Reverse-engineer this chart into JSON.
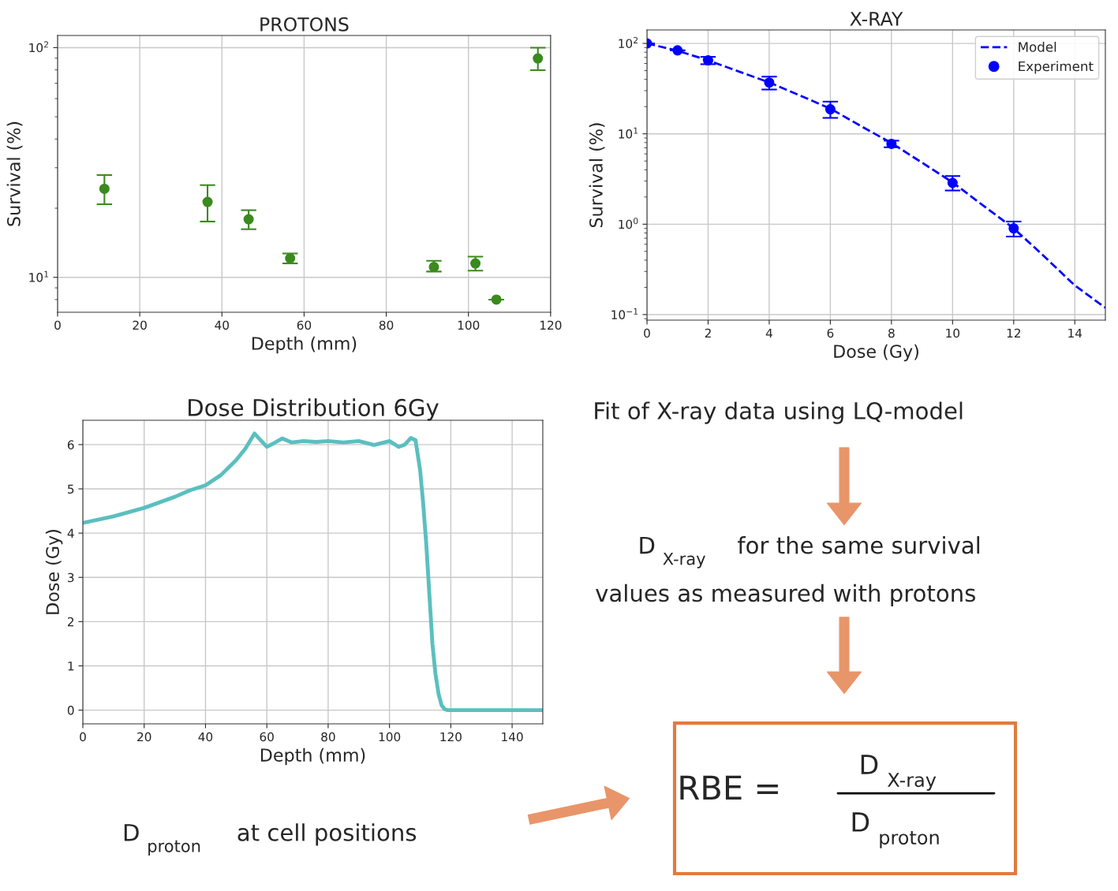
{
  "chart_data": [
    {
      "type": "scatter",
      "title": "PROTONS",
      "xlabel": "Depth (mm)",
      "ylabel": "Survival (%)",
      "log": "y",
      "x": [
        11.4,
        36.5,
        46.5,
        56.6,
        91.6,
        101.7,
        106.8,
        116.9
      ],
      "series": [
        {
          "color": "#3a8a1e",
          "values": [
            24.3,
            21.3,
            17.9,
            12.1,
            11.1,
            11.5,
            8.0,
            89.8
          ],
          "errors": [
            [
              20.8,
              27.9
            ],
            [
              17.5,
              25.2
            ],
            [
              16.2,
              19.6
            ],
            [
              11.5,
              12.7
            ],
            [
              10.6,
              11.8
            ],
            [
              10.7,
              12.3
            ],
            [
              8.0,
              8.0
            ],
            [
              79.8,
              100
            ]
          ]
        }
      ],
      "marker": "circle",
      "xlim": [
        0,
        120
      ],
      "xticks": [
        0,
        20,
        40,
        60,
        80,
        100,
        120
      ],
      "ylim": [
        7.05,
        113
      ],
      "yticks": [
        {
          "value": 10,
          "label": "10$^{1}$"
        },
        {
          "value": 100,
          "label": "10$^{2}$"
        }
      ],
      "grid": true,
      "legend": false
    },
    {
      "type": "scatter",
      "title": "X-RAY",
      "xlabel": "Dose (Gy)",
      "ylabel": "Survival (%)",
      "log": "y",
      "series": [
        {
          "name": "Model",
          "type": "line",
          "line_style": "dashed",
          "marker": "none",
          "color": "#0000ff",
          "x": [
            0,
            1,
            2,
            3,
            4,
            5,
            6,
            7,
            8,
            9,
            10,
            11,
            12,
            13,
            14,
            15
          ],
          "values": [
            100,
            83,
            65,
            49,
            37,
            26.6,
            19,
            12.2,
            7.9,
            4.8,
            2.9,
            1.61,
            0.9,
            0.44,
            0.21,
            0.119
          ]
        },
        {
          "name": "Experiment",
          "color": "#0000ff",
          "x": [
            0,
            1,
            2,
            4,
            6,
            8,
            10,
            12
          ],
          "values": [
            100,
            83.8,
            64.9,
            36.9,
            18.7,
            7.74,
            2.86,
            0.9
          ],
          "errors": [
            null,
            null,
            [
              58.9,
              71
            ],
            [
              30.9,
              42.9
            ],
            [
              15.0,
              22.7
            ],
            [
              7.1,
              8.4
            ],
            [
              2.36,
              3.41
            ],
            [
              0.73,
              1.07
            ]
          ]
        }
      ],
      "marker": "circle",
      "xlim": [
        0,
        15
      ],
      "xticks": [
        0,
        2,
        4,
        6,
        8,
        10,
        12,
        14
      ],
      "ylim": [
        0.0868,
        141
      ],
      "yticks": [
        {
          "value": 0.1,
          "label": "10$^{−1}$"
        },
        {
          "value": 1,
          "label": "10$^{0}$"
        },
        {
          "value": 10,
          "label": "10$^{1}$"
        },
        {
          "value": 100,
          "label": "10$^{2}$"
        }
      ],
      "grid": true,
      "legend": "top right"
    },
    {
      "type": "line",
      "title": "Dose Distribution 6Gy",
      "xlabel": "Depth (mm)",
      "ylabel": "Dose (Gy)",
      "x": [
        0,
        10,
        20,
        30,
        35,
        40,
        45,
        50,
        53,
        56,
        58,
        60,
        62,
        65,
        68,
        72,
        76,
        80,
        85,
        90,
        95,
        100,
        103,
        105,
        107,
        108.5,
        110,
        111,
        112,
        113,
        114,
        115,
        116,
        117,
        118,
        119,
        120,
        150
      ],
      "series": [
        {
          "color": "#5bbfbf",
          "values": [
            4.23,
            4.38,
            4.57,
            4.82,
            4.97,
            5.08,
            5.31,
            5.65,
            5.91,
            6.25,
            6.1,
            5.95,
            6.02,
            6.14,
            6.05,
            6.08,
            6.06,
            6.08,
            6.05,
            6.08,
            5.99,
            6.08,
            5.95,
            6.0,
            6.15,
            6.1,
            5.42,
            4.66,
            3.75,
            2.63,
            1.5,
            0.82,
            0.37,
            0.11,
            0.02,
            0,
            0,
            0
          ]
        }
      ],
      "marker": "none",
      "line_style": "solid",
      "xlim": [
        0,
        150
      ],
      "xticks": [
        0,
        20,
        40,
        60,
        80,
        100,
        120,
        140
      ],
      "ylim": [
        -0.31,
        6.55
      ],
      "yticks": [
        0,
        1,
        2,
        3,
        4,
        5,
        6
      ],
      "grid": true,
      "legend": false
    },
    {
      "type": "other",
      "annotations": [
        "Fit of X-ray data using LQ-model",
        "D$_{X-ray}$  for the same survival\nvalues as measured with protons",
        "D$_{proton}$  at cell positions",
        "RBE =",
        "D$_{X-ray}$",
        "D$_{proton}$"
      ]
    }
  ]
}
